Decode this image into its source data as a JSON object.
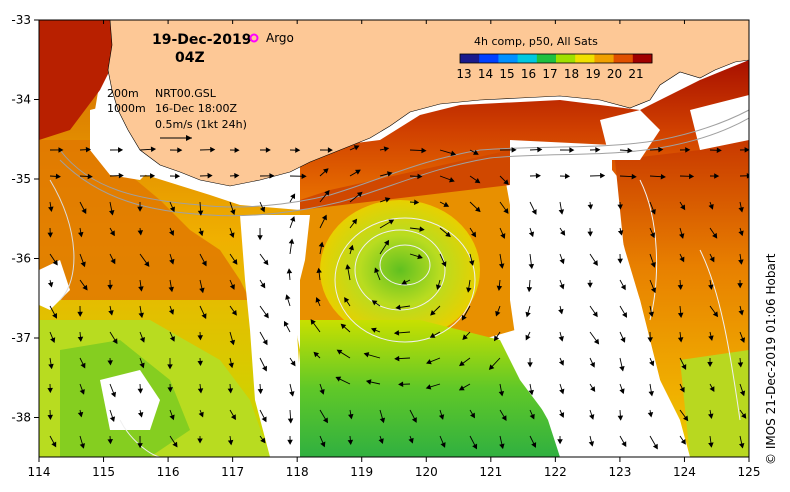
{
  "header": {
    "date": "19-Dec-2019",
    "time": "04Z",
    "argo_label": "Argo"
  },
  "legend": {
    "title": "4h comp, p50, All Sats",
    "ticks": [
      "13",
      "14",
      "15",
      "16",
      "17",
      "18",
      "19",
      "20",
      "21"
    ],
    "colors": [
      "#1a1a8c",
      "#0040ff",
      "#0090ff",
      "#00c8e0",
      "#20c040",
      "#a0e000",
      "#f0e000",
      "#f0a000",
      "#e05000",
      "#a00000"
    ]
  },
  "annotations": {
    "contour_200": "200m",
    "contour_1000": "1000m",
    "product": "NRT00.GSL",
    "product_time": "16-Dec 18:00Z",
    "vector_scale": "0.5m/s (1kt 24h)"
  },
  "axes": {
    "x_ticks": [
      "114",
      "115",
      "116",
      "117",
      "118",
      "119",
      "120",
      "121",
      "122",
      "123",
      "124",
      "125"
    ],
    "y_ticks": [
      "-33",
      "-34",
      "-35",
      "-36",
      "-37",
      "-38"
    ]
  },
  "credit": "© IMOS 21-Dec-2019 01:06 Hobart",
  "colors": {
    "land": "#fdc896",
    "cloud": "#ffffff",
    "contour": "#a0a0a0"
  }
}
